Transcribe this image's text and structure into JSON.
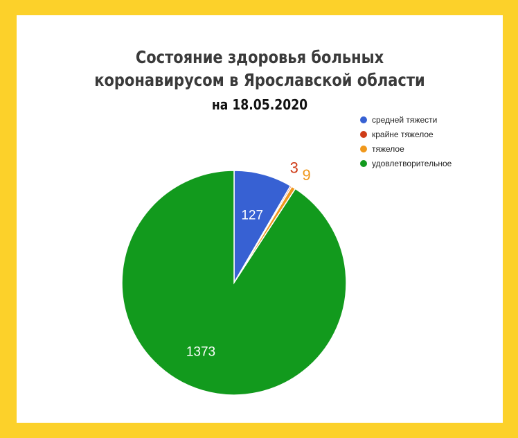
{
  "chart_data": {
    "type": "pie",
    "title_lines": [
      "Состояние здоровья больных",
      "коронавирусом в Ярославской области"
    ],
    "subtitle": "на 18.05.2020",
    "slices": [
      {
        "label": "средней тяжести",
        "value": 127,
        "color": "#3761d3"
      },
      {
        "label": "крайне тяжелое",
        "value": 3,
        "color": "#cf3c18"
      },
      {
        "label": "тяжелое",
        "value": 9,
        "color": "#f0981c"
      },
      {
        "label": "удовлетворительное",
        "value": 1373,
        "color": "#129a1d"
      }
    ],
    "legend_position": "top-right"
  }
}
